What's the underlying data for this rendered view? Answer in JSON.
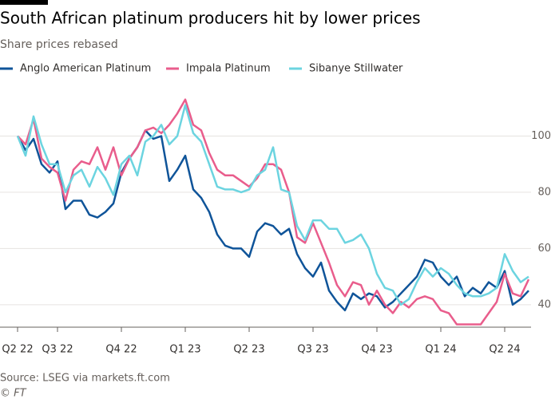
{
  "chart_data": {
    "type": "line",
    "title": "South African platinum producers hit by lower prices",
    "subtitle": "Share prices rebased",
    "source": "Source: LSEG via markets.ft.com",
    "credit": "© FT",
    "categories": [
      "Q2 22",
      null,
      null,
      null,
      null,
      "Q3 22",
      null,
      null,
      null,
      null,
      null,
      null,
      null,
      "Q4 22",
      null,
      null,
      null,
      null,
      null,
      null,
      null,
      "Q1 23",
      null,
      null,
      null,
      null,
      null,
      null,
      null,
      "Q2 23",
      null,
      null,
      null,
      null,
      null,
      null,
      null,
      "Q3 23",
      null,
      null,
      null,
      null,
      null,
      null,
      null,
      "Q4 23",
      null,
      null,
      null,
      null,
      null,
      null,
      null,
      "Q1 24",
      null,
      null,
      null,
      null,
      null,
      null,
      null,
      "Q2 24",
      null,
      null,
      null
    ],
    "series": [
      {
        "name": "Anglo American Platinum",
        "color": "#0f5499",
        "values": [
          100,
          95,
          99,
          90,
          87,
          91,
          74,
          77,
          77,
          72,
          71,
          73,
          76,
          87,
          92,
          96,
          102,
          99,
          100,
          84,
          88,
          93,
          81,
          78,
          73,
          65,
          61,
          60,
          60,
          57,
          66,
          69,
          68,
          65,
          67,
          58,
          53,
          50,
          55,
          45,
          41,
          38,
          44,
          42,
          44,
          43,
          39,
          41,
          44,
          47,
          50,
          56,
          55,
          50,
          47,
          50,
          43,
          46,
          44,
          48,
          46,
          52,
          40,
          42,
          45
        ]
      },
      {
        "name": "Impala Platinum",
        "color": "#e95d8c",
        "values": [
          100,
          97,
          106,
          92,
          89,
          87,
          77,
          88,
          91,
          90,
          96,
          88,
          96,
          86,
          92,
          96,
          102,
          103,
          101,
          104,
          108,
          113,
          104,
          102,
          94,
          88,
          86,
          86,
          84,
          82,
          85,
          90,
          90,
          88,
          80,
          64,
          62,
          69,
          62,
          55,
          47,
          43,
          48,
          47,
          40,
          45,
          40,
          37,
          41,
          39,
          42,
          43,
          42,
          38,
          37,
          33,
          33,
          33,
          33,
          37,
          41,
          51,
          44,
          43,
          49
        ]
      },
      {
        "name": "Sibanye Stillwater",
        "color": "#6cd4e0",
        "values": [
          100,
          93,
          107,
          97,
          90,
          90,
          80,
          86,
          88,
          82,
          89,
          85,
          79,
          90,
          93,
          86,
          98,
          100,
          104,
          97,
          100,
          111,
          101,
          98,
          90,
          82,
          81,
          81,
          80,
          81,
          86,
          88,
          96,
          81,
          80,
          68,
          63,
          70,
          70,
          67,
          67,
          62,
          63,
          65,
          60,
          51,
          46,
          45,
          40,
          42,
          48,
          53,
          50,
          53,
          51,
          47,
          44,
          43,
          43,
          44,
          46,
          58,
          52,
          48,
          50
        ]
      }
    ],
    "ylim": [
      32,
      120
    ],
    "yticks": [
      40,
      60,
      80,
      100
    ],
    "grid": true
  }
}
